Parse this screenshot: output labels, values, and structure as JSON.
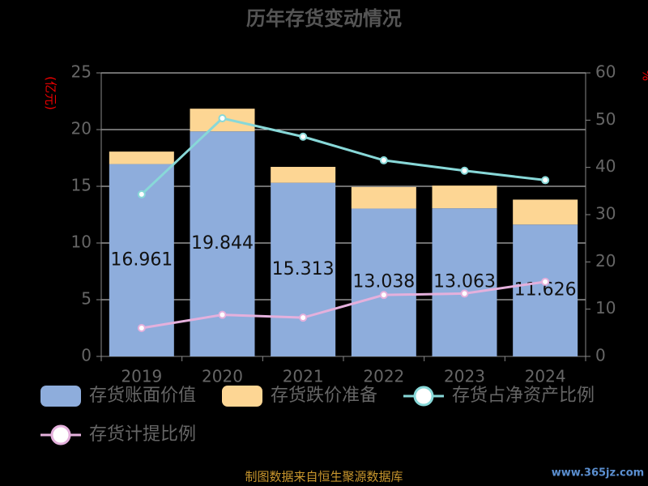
{
  "chart_data": {
    "type": "bar",
    "title": "历年存货变动情况",
    "ylabel": "(亿元)",
    "y2label": "%",
    "categories": [
      "2019",
      "2020",
      "2021",
      "2022",
      "2023",
      "2024"
    ],
    "series": [
      {
        "name": "存货账面价值",
        "type": "bar",
        "color": "#8eaddc",
        "values": [
          16.961,
          19.844,
          15.313,
          13.038,
          13.063,
          11.626
        ],
        "show_labels": true
      },
      {
        "name": "存货跌价准备",
        "type": "bar",
        "color": "#fdd694",
        "values": [
          1.1,
          2.0,
          1.4,
          1.9,
          2.0,
          2.2
        ]
      },
      {
        "name": "存货占净资产比例",
        "type": "line",
        "axis": "y2",
        "color": "#88d8d8",
        "values": [
          34.3,
          50.4,
          46.5,
          41.5,
          39.3,
          37.3
        ]
      },
      {
        "name": "存货计提比例",
        "type": "line",
        "axis": "y2",
        "color": "#e4b0dc",
        "values": [
          6.0,
          8.8,
          8.2,
          13.0,
          13.3,
          15.8
        ]
      }
    ],
    "ylim": [
      0,
      25
    ],
    "yticks": [
      0,
      5,
      10,
      15,
      20,
      25
    ],
    "y2lim": [
      0,
      60
    ],
    "y2ticks": [
      0,
      10,
      20,
      30,
      40,
      50,
      60
    ],
    "grid": true,
    "legend": "bottom",
    "source": "制图数据来自恒生聚源数据库",
    "watermark": "www.365jz.com"
  }
}
